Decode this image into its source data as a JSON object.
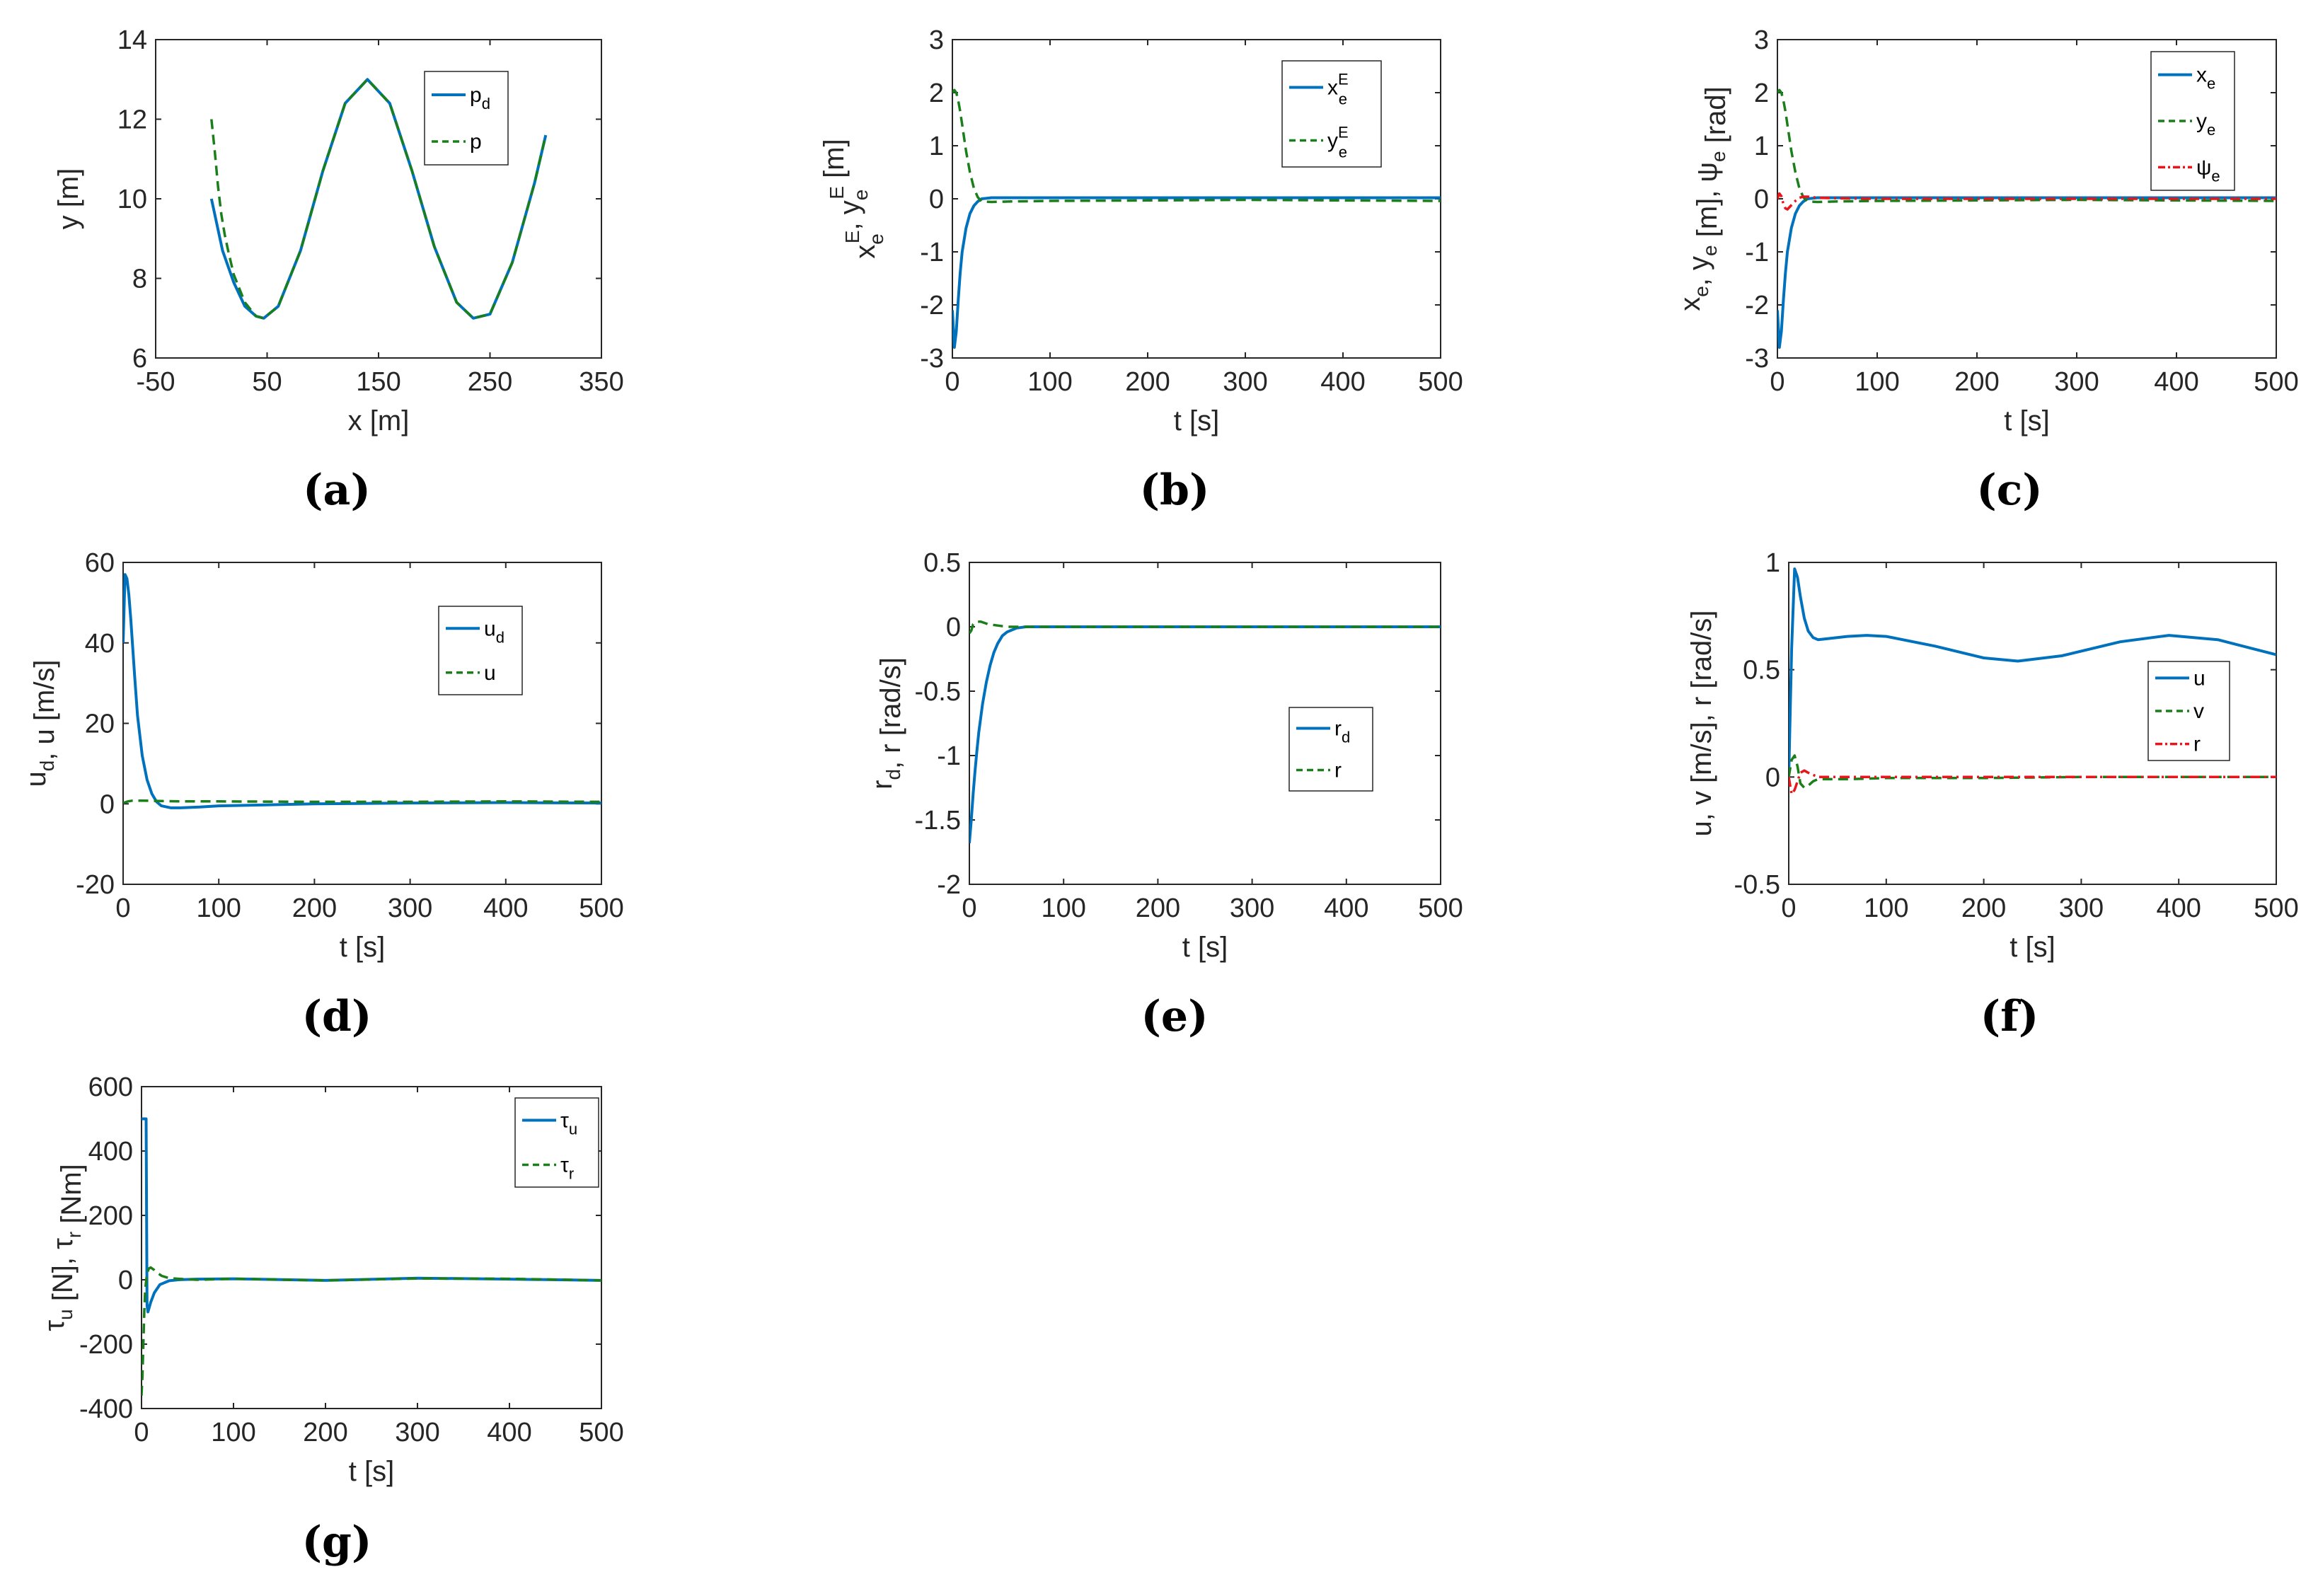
{
  "colors": {
    "blue": "#0072BD",
    "green": "#1A7F1A",
    "red": "#E8161B",
    "axis": "#262626",
    "grid_box": "#262626"
  },
  "chart_data": [
    {
      "id": "a",
      "type": "line",
      "caption": "(a)",
      "xlabel": "x [m]",
      "ylabel": "y [m]",
      "xlim": [
        -50,
        350
      ],
      "ylim": [
        6,
        14
      ],
      "xticks": [
        -50,
        50,
        150,
        250,
        350
      ],
      "yticks": [
        6,
        8,
        10,
        12,
        14
      ],
      "xtick_labels": [
        "-50",
        "50",
        "150",
        "250",
        "350"
      ],
      "ytick_labels": [
        "6",
        "8",
        "10",
        "12",
        "14"
      ],
      "legend_location": "top-right",
      "series": [
        {
          "name": "p_d",
          "label_main": "p",
          "label_sub": "d",
          "style": "solid",
          "color": "blue",
          "x": [
            0,
            10,
            20,
            30,
            40,
            47,
            60,
            80,
            100,
            120,
            140,
            160,
            180,
            200,
            220,
            235,
            250,
            270,
            290,
            300
          ],
          "y": [
            10,
            8.7,
            7.9,
            7.3,
            7.05,
            7,
            7.3,
            8.7,
            10.7,
            12.4,
            13,
            12.4,
            10.7,
            8.8,
            7.4,
            7,
            7.1,
            8.4,
            10.4,
            11.6
          ]
        },
        {
          "name": "p",
          "label_main": "p",
          "label_sub": "",
          "style": "dashed",
          "color": "green",
          "x": [
            0,
            3,
            6,
            9,
            12,
            15,
            20,
            30,
            40,
            47,
            60,
            80,
            100,
            120,
            140,
            160,
            180,
            200,
            220,
            235,
            250,
            270,
            290,
            300
          ],
          "y": [
            12,
            11.2,
            10.3,
            9.6,
            9.1,
            8.7,
            8.1,
            7.4,
            7.05,
            7,
            7.3,
            8.7,
            10.7,
            12.4,
            13,
            12.4,
            10.7,
            8.8,
            7.4,
            7,
            7.1,
            8.4,
            10.4,
            11.6
          ]
        }
      ]
    },
    {
      "id": "b",
      "type": "line",
      "caption": "(b)",
      "xlabel": "t [s]",
      "ylabel": "x_e^E, y_e^E [m]",
      "xlim": [
        0,
        500
      ],
      "ylim": [
        -3,
        3
      ],
      "xticks": [
        0,
        100,
        200,
        300,
        400,
        500
      ],
      "yticks": [
        -3,
        -2,
        -1,
        0,
        1,
        2,
        3
      ],
      "xtick_labels": [
        "0",
        "100",
        "200",
        "300",
        "400",
        "500"
      ],
      "ytick_labels": [
        "-3",
        "-2",
        "-1",
        "0",
        "1",
        "2",
        "3"
      ],
      "legend_location": "top-right",
      "series": [
        {
          "name": "x_e^E",
          "label_main": "x",
          "label_sub": "e",
          "label_sup": "E",
          "style": "solid",
          "color": "blue",
          "x": [
            0,
            2,
            4,
            6,
            8,
            10,
            14,
            18,
            22,
            26,
            30,
            40,
            60,
            100,
            200,
            300,
            400,
            500
          ],
          "y": [
            -2.1,
            -2.8,
            -2.5,
            -1.9,
            -1.4,
            -1.0,
            -0.55,
            -0.28,
            -0.13,
            -0.05,
            0,
            0.02,
            0.02,
            0.02,
            0.02,
            0.02,
            0.02,
            0.02
          ]
        },
        {
          "name": "y_e^E",
          "label_main": "y",
          "label_sub": "e",
          "label_sup": "E",
          "style": "dashed",
          "color": "green",
          "x": [
            0,
            2,
            4,
            6,
            8,
            10,
            14,
            18,
            22,
            26,
            30,
            40,
            60,
            100,
            200,
            300,
            400,
            500
          ],
          "y": [
            2.0,
            2.05,
            2.0,
            1.85,
            1.65,
            1.4,
            0.9,
            0.5,
            0.2,
            0.03,
            -0.05,
            -0.06,
            -0.05,
            -0.04,
            -0.03,
            -0.02,
            -0.03,
            -0.04
          ]
        }
      ]
    },
    {
      "id": "c",
      "type": "line",
      "caption": "(c)",
      "xlabel": "t [s]",
      "ylabel": "x_e, y_e [m], psi_e [rad]",
      "xlim": [
        0,
        500
      ],
      "ylim": [
        -3,
        3
      ],
      "xticks": [
        0,
        100,
        200,
        300,
        400,
        500
      ],
      "yticks": [
        -3,
        -2,
        -1,
        0,
        1,
        2,
        3
      ],
      "xtick_labels": [
        "0",
        "100",
        "200",
        "300",
        "400",
        "500"
      ],
      "ytick_labels": [
        "-3",
        "-2",
        "-1",
        "0",
        "1",
        "2",
        "3"
      ],
      "legend_location": "top-right",
      "series": [
        {
          "name": "x_e",
          "label_main": "x",
          "label_sub": "e",
          "style": "solid",
          "color": "blue",
          "x": [
            0,
            2,
            4,
            6,
            8,
            10,
            14,
            18,
            22,
            26,
            30,
            40,
            60,
            100,
            200,
            300,
            400,
            500
          ],
          "y": [
            -2.1,
            -2.8,
            -2.5,
            -1.9,
            -1.4,
            -1.0,
            -0.55,
            -0.28,
            -0.13,
            -0.05,
            0,
            0.02,
            0.02,
            0.02,
            0.02,
            0.02,
            0.02,
            0.02
          ]
        },
        {
          "name": "y_e",
          "label_main": "y",
          "label_sub": "e",
          "style": "dashed",
          "color": "green",
          "x": [
            0,
            2,
            4,
            6,
            8,
            10,
            14,
            18,
            22,
            26,
            30,
            40,
            60,
            100,
            200,
            300,
            400,
            500
          ],
          "y": [
            2.0,
            2.05,
            2.0,
            1.85,
            1.65,
            1.4,
            0.9,
            0.5,
            0.2,
            0.03,
            -0.05,
            -0.06,
            -0.05,
            -0.04,
            -0.03,
            -0.02,
            -0.03,
            -0.04
          ]
        },
        {
          "name": "psi_e",
          "label_main": "ψ",
          "label_sub": "e",
          "style": "dashdot",
          "color": "red",
          "x": [
            0,
            2,
            4,
            6,
            8,
            10,
            14,
            18,
            22,
            26,
            30,
            40,
            60,
            100,
            200,
            300,
            400,
            500
          ],
          "y": [
            0,
            0.1,
            0.05,
            -0.1,
            -0.18,
            -0.2,
            -0.12,
            -0.04,
            0.02,
            0.04,
            0.04,
            0.02,
            0.01,
            0,
            0,
            0,
            0,
            0
          ]
        }
      ]
    },
    {
      "id": "d",
      "type": "line",
      "caption": "(d)",
      "xlabel": "t [s]",
      "ylabel": "u_d, u [m/s]",
      "xlim": [
        0,
        500
      ],
      "ylim": [
        -20,
        60
      ],
      "xticks": [
        0,
        100,
        200,
        300,
        400,
        500
      ],
      "yticks": [
        -20,
        0,
        20,
        40,
        60
      ],
      "xtick_labels": [
        "0",
        "100",
        "200",
        "300",
        "400",
        "500"
      ],
      "ytick_labels": [
        "-20",
        "0",
        "20",
        "40",
        "60"
      ],
      "legend_location": "top-right",
      "series": [
        {
          "name": "u_d",
          "label_main": "u",
          "label_sub": "d",
          "style": "solid",
          "color": "blue",
          "x": [
            0,
            2,
            4,
            6,
            8,
            10,
            12,
            15,
            20,
            25,
            30,
            35,
            40,
            50,
            60,
            80,
            100,
            200,
            300,
            400,
            500
          ],
          "y": [
            40,
            57,
            56,
            52,
            46,
            39,
            32,
            22,
            12,
            6,
            2.5,
            0.5,
            -0.5,
            -1,
            -1,
            -0.8,
            -0.5,
            0,
            0.2,
            0.3,
            0.2
          ]
        },
        {
          "name": "u",
          "label_main": "u",
          "label_sub": "",
          "style": "dashed",
          "color": "green",
          "x": [
            0,
            5,
            10,
            20,
            40,
            60,
            100,
            200,
            300,
            400,
            500
          ],
          "y": [
            0.2,
            0.6,
            0.8,
            0.8,
            0.7,
            0.6,
            0.6,
            0.5,
            0.5,
            0.6,
            0.5
          ]
        }
      ]
    },
    {
      "id": "e",
      "type": "line",
      "caption": "(e)",
      "xlabel": "t [s]",
      "ylabel": "r_d, r [rad/s]",
      "xlim": [
        0,
        500
      ],
      "ylim": [
        -2,
        0.5
      ],
      "xticks": [
        0,
        100,
        200,
        300,
        400,
        500
      ],
      "yticks": [
        -2,
        -1.5,
        -1,
        -0.5,
        0,
        0.5
      ],
      "xtick_labels": [
        "0",
        "100",
        "200",
        "300",
        "400",
        "500"
      ],
      "ytick_labels": [
        "-2",
        "-1.5",
        "-1",
        "-0.5",
        "0",
        "0.5"
      ],
      "legend_location": "center-right",
      "series": [
        {
          "name": "r_d",
          "label_main": "r",
          "label_sub": "d",
          "style": "solid",
          "color": "blue",
          "x": [
            0,
            2,
            4,
            6,
            8,
            10,
            14,
            18,
            22,
            26,
            30,
            35,
            40,
            50,
            60,
            80,
            100,
            200,
            300,
            400,
            500
          ],
          "y": [
            -1.68,
            -1.5,
            -1.3,
            -1.12,
            -0.96,
            -0.82,
            -0.6,
            -0.43,
            -0.3,
            -0.2,
            -0.13,
            -0.07,
            -0.04,
            -0.01,
            0,
            0,
            0,
            0,
            0,
            0,
            0
          ]
        },
        {
          "name": "r",
          "label_main": "r",
          "label_sub": "",
          "style": "dashed",
          "color": "green",
          "x": [
            0,
            2,
            4,
            8,
            12,
            16,
            20,
            30,
            40,
            60,
            100,
            200,
            300,
            400,
            500
          ],
          "y": [
            -0.05,
            -0.03,
            0.02,
            0.04,
            0.04,
            0.03,
            0.02,
            0.01,
            0,
            0,
            0,
            0,
            0,
            0,
            0
          ]
        }
      ]
    },
    {
      "id": "f",
      "type": "line",
      "caption": "(f)",
      "xlabel": "t [s]",
      "ylabel": "u, v [m/s], r [rad/s]",
      "xlim": [
        0,
        500
      ],
      "ylim": [
        -0.5,
        1
      ],
      "xticks": [
        0,
        100,
        200,
        300,
        400,
        500
      ],
      "yticks": [
        -0.5,
        0,
        0.5,
        1
      ],
      "xtick_labels": [
        "0",
        "100",
        "200",
        "300",
        "400",
        "500"
      ],
      "ytick_labels": [
        "-0.5",
        "0",
        "0.5",
        "1"
      ],
      "legend_location": "center-right",
      "series": [
        {
          "name": "u",
          "label_main": "u",
          "label_sub": "",
          "style": "solid",
          "color": "blue",
          "x": [
            0,
            3,
            6,
            9,
            12,
            16,
            20,
            25,
            30,
            40,
            60,
            80,
            100,
            150,
            200,
            235,
            280,
            340,
            390,
            440,
            500
          ],
          "y": [
            0,
            0.6,
            0.97,
            0.93,
            0.84,
            0.74,
            0.68,
            0.65,
            0.64,
            0.645,
            0.655,
            0.66,
            0.655,
            0.61,
            0.555,
            0.54,
            0.565,
            0.63,
            0.66,
            0.64,
            0.57
          ]
        },
        {
          "name": "v",
          "label_main": "v",
          "label_sub": "",
          "style": "dashed",
          "color": "green",
          "x": [
            0,
            3,
            6,
            9,
            12,
            16,
            20,
            25,
            30,
            40,
            60,
            100,
            200,
            300,
            400,
            500
          ],
          "y": [
            0,
            0.08,
            0.1,
            0.05,
            -0.03,
            -0.05,
            -0.04,
            -0.02,
            -0.01,
            -0.01,
            -0.01,
            -0.005,
            -0.005,
            0,
            0,
            0
          ]
        },
        {
          "name": "r",
          "label_main": "r",
          "label_sub": "",
          "style": "dashdot",
          "color": "red",
          "x": [
            0,
            3,
            6,
            9,
            12,
            16,
            20,
            25,
            30,
            40,
            60,
            100,
            200,
            300,
            400,
            500
          ],
          "y": [
            0,
            -0.08,
            -0.06,
            -0.02,
            0.02,
            0.03,
            0.02,
            0.01,
            0,
            0,
            0,
            0,
            0,
            0,
            0,
            0
          ]
        }
      ]
    },
    {
      "id": "g",
      "type": "line",
      "caption": "(g)",
      "xlabel": "t [s]",
      "ylabel": "tau_u [N], tau_r [Nm]",
      "xlim": [
        0,
        500
      ],
      "ylim": [
        -400,
        600
      ],
      "xticks": [
        0,
        100,
        200,
        300,
        400,
        500
      ],
      "yticks": [
        -400,
        -200,
        0,
        200,
        400,
        600
      ],
      "xtick_labels": [
        "0",
        "100",
        "200",
        "300",
        "400",
        "500"
      ],
      "ytick_labels": [
        "-400",
        "-200",
        "0",
        "200",
        "400",
        "600"
      ],
      "legend_location": "top-right",
      "series": [
        {
          "name": "tau_u",
          "label_main": "τ",
          "label_sub": "u",
          "style": "solid",
          "color": "blue",
          "x": [
            0,
            1,
            2,
            3,
            4,
            5,
            6,
            7,
            8,
            10,
            14,
            20,
            30,
            40,
            60,
            100,
            200,
            300,
            400,
            500
          ],
          "y": [
            500,
            500,
            500,
            500,
            500,
            500,
            -80,
            -100,
            -90,
            -70,
            -40,
            -15,
            -3,
            0,
            2,
            3,
            -2,
            5,
            2,
            -2
          ]
        },
        {
          "name": "tau_r",
          "label_main": "τ",
          "label_sub": "r",
          "style": "dashed",
          "color": "green",
          "x": [
            0,
            1,
            2,
            3,
            4,
            6,
            8,
            10,
            14,
            18,
            22,
            30,
            40,
            60,
            100,
            200,
            300,
            400,
            500
          ],
          "y": [
            -360,
            -300,
            -200,
            -100,
            -30,
            20,
            35,
            38,
            30,
            20,
            12,
            5,
            3,
            0,
            3,
            -2,
            4,
            3,
            -2
          ]
        }
      ]
    }
  ]
}
